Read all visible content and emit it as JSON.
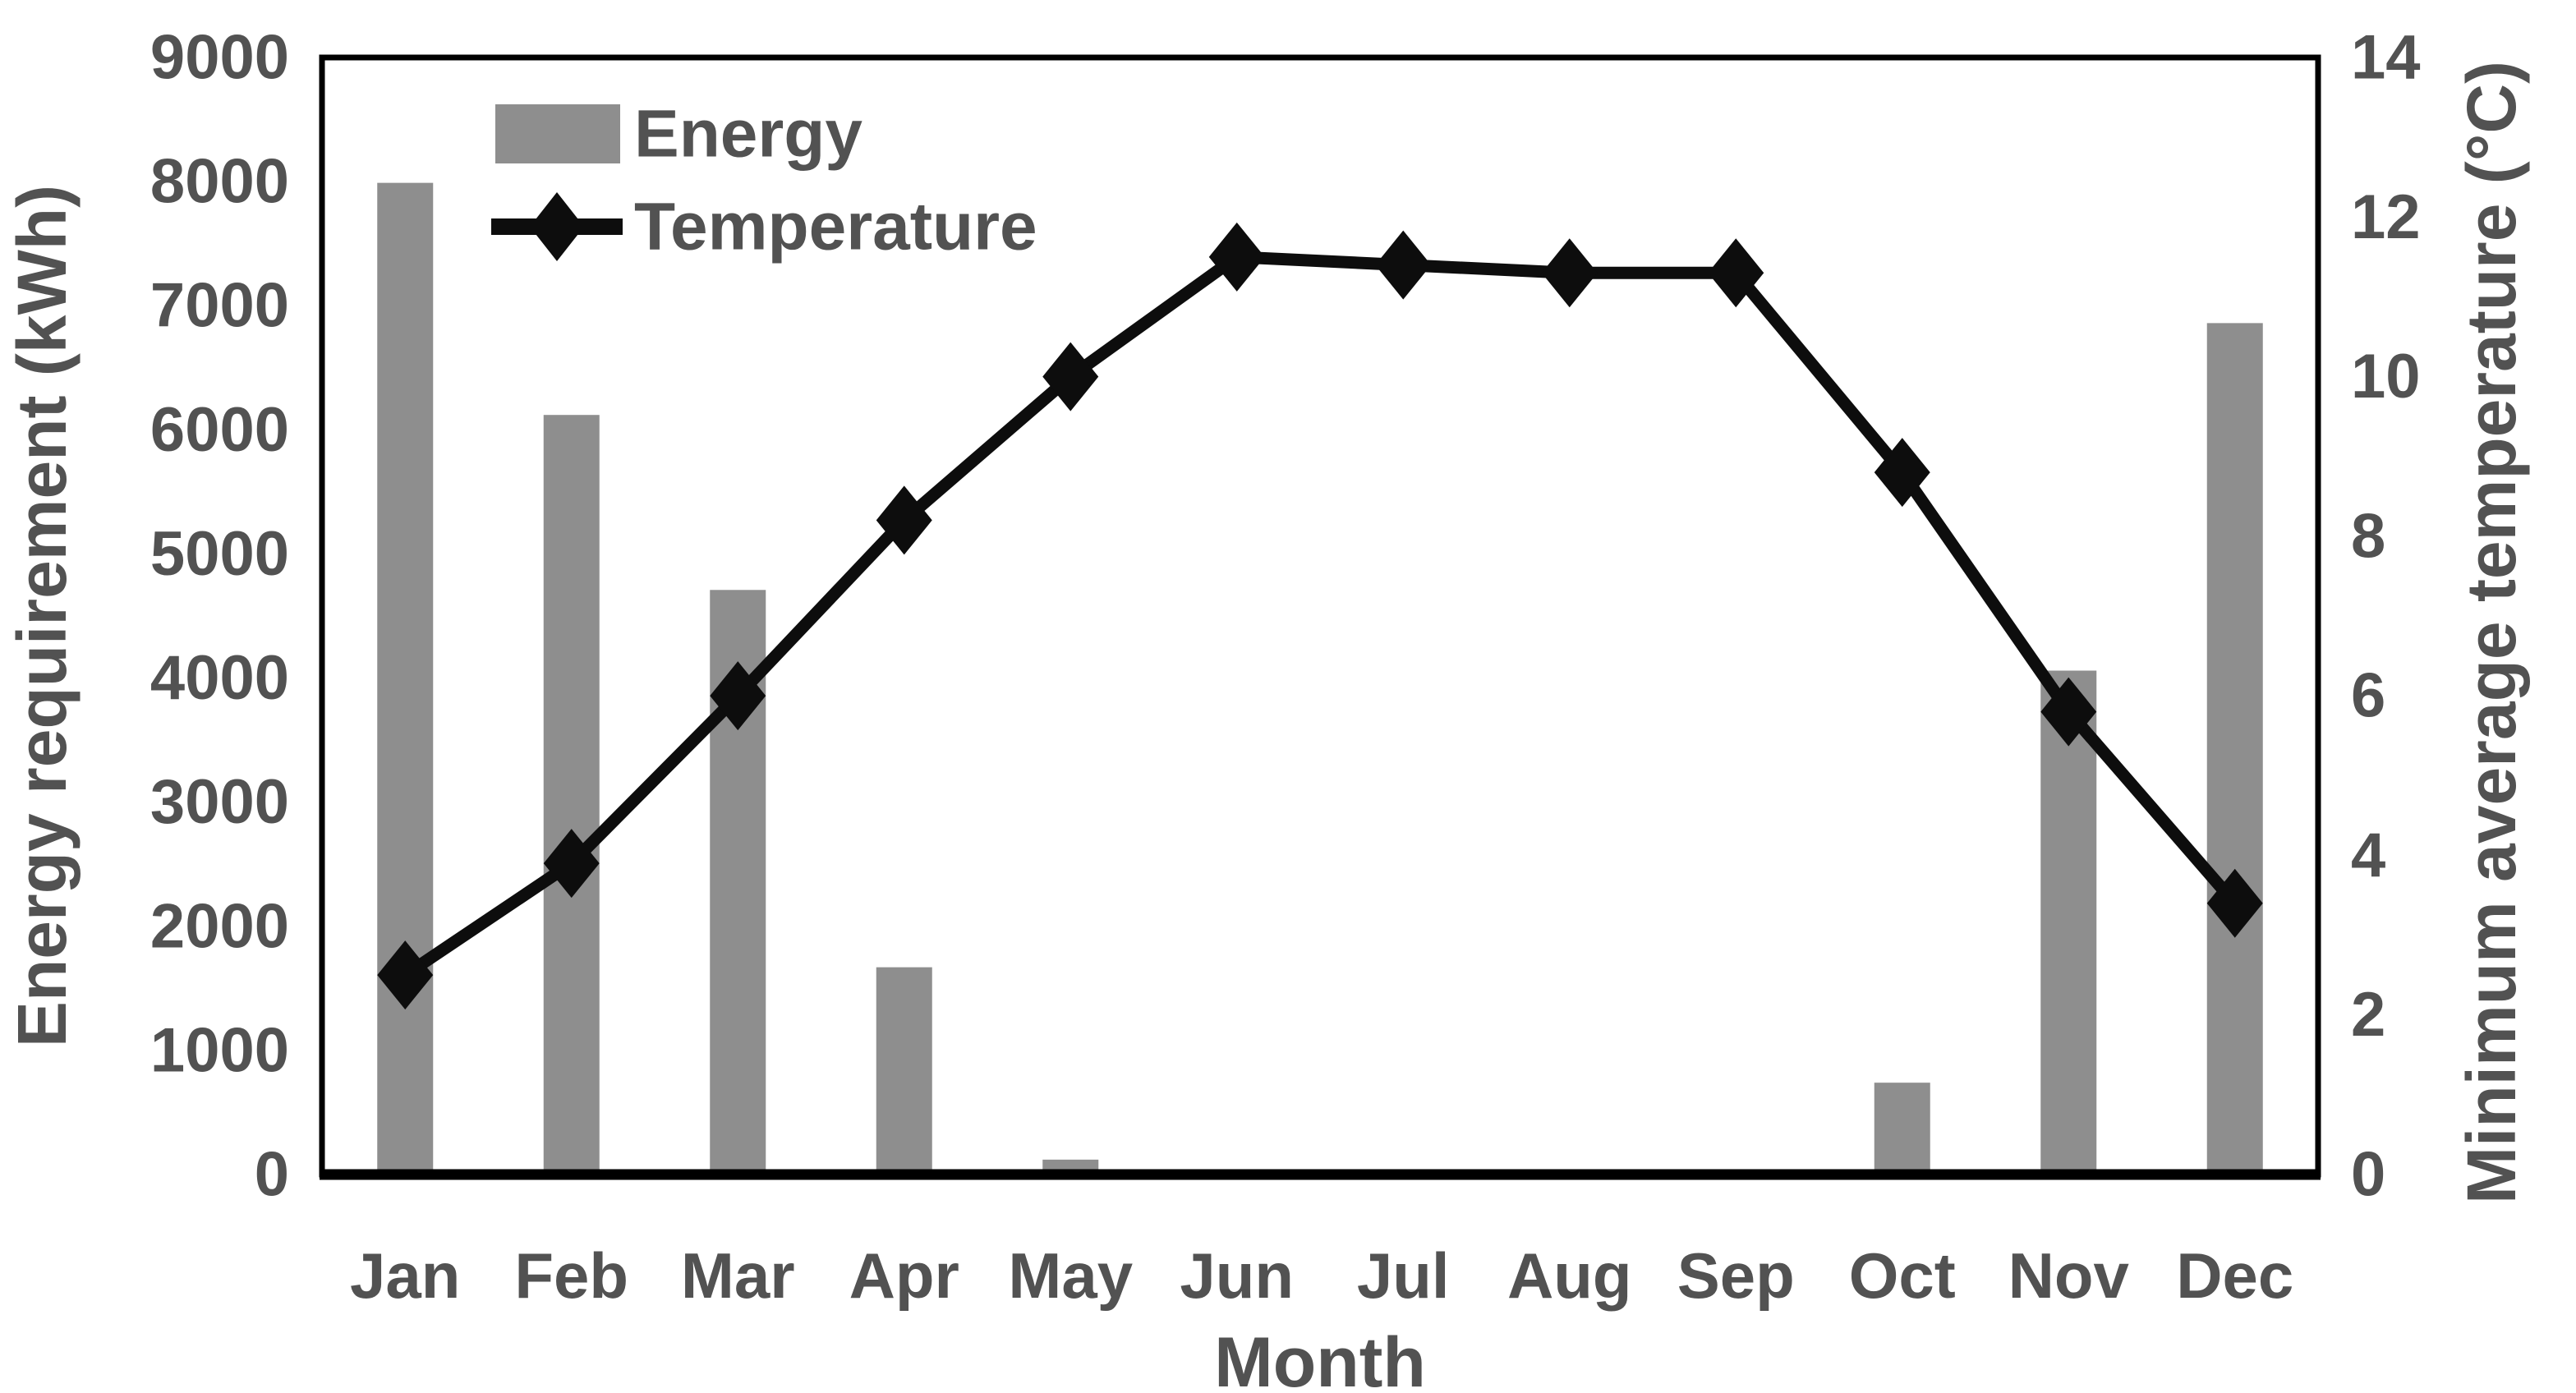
{
  "figure": {
    "background": "#ffffff",
    "colors": {
      "bar": "#8e8e8e",
      "line": "#0d0d0d",
      "text": "#525252",
      "frame": "#000000"
    }
  },
  "chart_data": {
    "type": "combo-bar-line-dual-axis",
    "title": "",
    "categories": [
      "Jan",
      "Feb",
      "Mar",
      "Apr",
      "May",
      "Jun",
      "Jul",
      "Aug",
      "Sep",
      "Oct",
      "Nov",
      "Dec"
    ],
    "series": [
      {
        "name": "Energy",
        "type": "bar",
        "axis": "left",
        "color": "#8e8e8e",
        "values": [
          7990,
          6120,
          4710,
          1670,
          120,
          0,
          0,
          0,
          0,
          740,
          4060,
          6860
        ]
      },
      {
        "name": "Temperature",
        "type": "line",
        "marker": "diamond",
        "axis": "right",
        "color": "#0d0d0d",
        "values": [
          2.5,
          3.9,
          6.0,
          8.2,
          10.0,
          11.5,
          11.4,
          11.3,
          11.3,
          8.8,
          5.8,
          3.4
        ]
      }
    ],
    "left_axis": {
      "label": "Energy requirement (kWh)",
      "min": 0,
      "max": 9000,
      "step": 1000,
      "ticks": [
        "0",
        "1000",
        "2000",
        "3000",
        "4000",
        "5000",
        "6000",
        "7000",
        "8000",
        "9000"
      ]
    },
    "right_axis": {
      "label": "Minimum average temperature (°C)",
      "min": 0,
      "max": 14,
      "step": 2,
      "ticks": [
        "0",
        "2",
        "4",
        "6",
        "8",
        "10",
        "12",
        "14"
      ]
    },
    "x_axis": {
      "label": "Month"
    },
    "legend": {
      "position": "inside-top-left",
      "entries": [
        "Energy",
        "Temperature"
      ]
    },
    "grid": false,
    "plot_background": "#ffffff"
  }
}
